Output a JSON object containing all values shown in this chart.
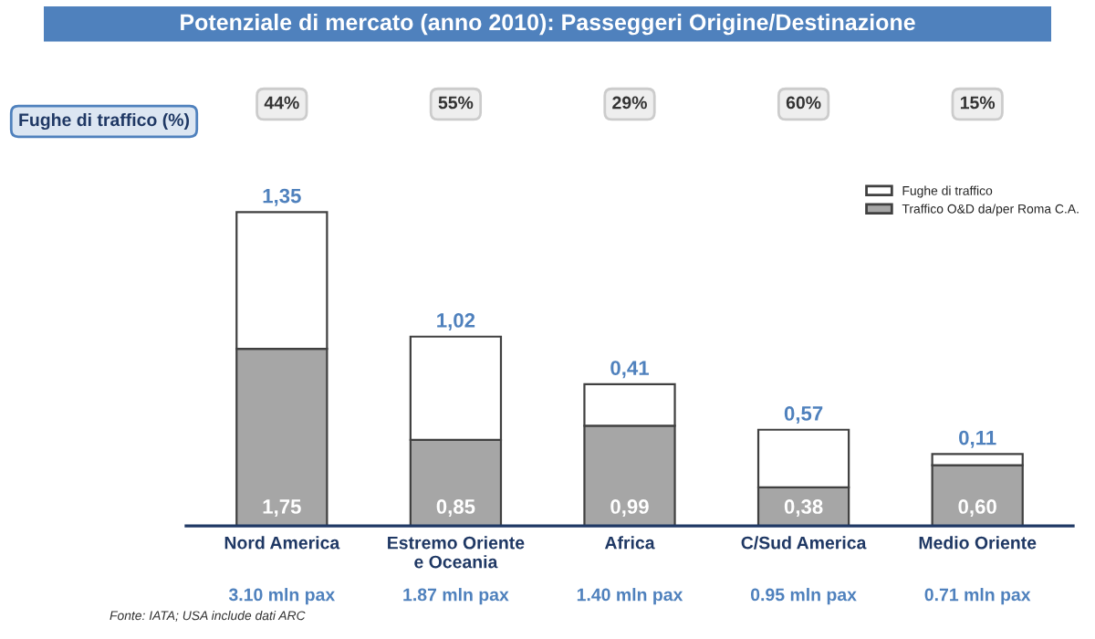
{
  "chart_data": {
    "type": "bar",
    "title": "Potenziale di mercato (anno 2010): Passeggeri Origine/Destinazione",
    "categories": [
      "Nord America",
      "Estremo Oriente\ne Oceania",
      "Africa",
      "C/Sud America",
      "Medio Oriente"
    ],
    "stacked": true,
    "legend": "top right",
    "grid": false,
    "series": [
      {
        "name": "Traffico O&D da/per Roma C.A.",
        "color": "#a6a6a6",
        "values": [
          1.75,
          0.85,
          0.99,
          0.38,
          0.6
        ],
        "value_labels": [
          "1,75",
          "0,85",
          "0,99",
          "0,38",
          "0,60"
        ]
      },
      {
        "name": "Fughe di traffico",
        "color": "#ffffff",
        "values": [
          1.35,
          1.02,
          0.41,
          0.57,
          0.11
        ],
        "value_labels": [
          "1,35",
          "1,02",
          "0,41",
          "0,57",
          "0,11"
        ]
      }
    ],
    "annotations": [
      "Fughe di traffico (%)",
      "44%",
      "55%",
      "29%",
      "60%",
      "15%",
      "3.10 mln pax",
      "1.87 mln pax",
      "1.40 mln pax",
      "0.95 mln pax",
      "0.71 mln pax",
      "Fonte: IATA; USA include dati ARC"
    ]
  }
}
